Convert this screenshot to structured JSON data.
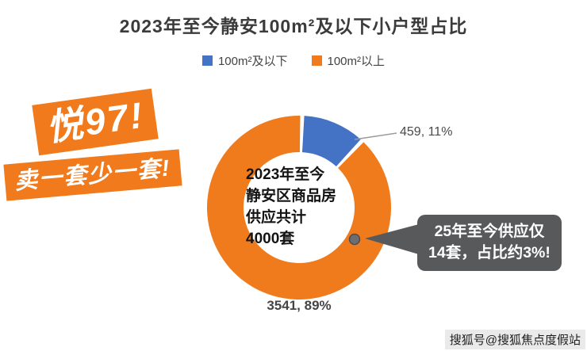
{
  "title": "2023年至今静安100m²及以下小户型占比",
  "legend": [
    {
      "label": "100m²及以下",
      "color": "#4472c4"
    },
    {
      "label": "100m²以上",
      "color": "#f07b1d"
    }
  ],
  "promo": {
    "line1": "悦97!",
    "line2": "卖一套少一套!"
  },
  "donut_center": {
    "lines": [
      "2023年至今",
      "静安区商品房",
      "供应共计",
      "4000套"
    ]
  },
  "callout": {
    "lines": [
      "25年至今供应仅",
      "14套，占比约3%!"
    ]
  },
  "watermark": "搜狐号@搜狐焦点度假站",
  "chart_data": {
    "type": "pie",
    "donut": true,
    "title": "2023年至今静安100m²及以下小户型占比",
    "categories": [
      "100m²及以下",
      "100m²以上"
    ],
    "values": [
      459,
      3541
    ],
    "total": 4000,
    "percent_labels": [
      "459, 11%",
      "3541, 89%"
    ],
    "colors": [
      "#4472c4",
      "#f07b1d"
    ],
    "legend_position": "top",
    "center_label": "2023年至今静安区商品房供应共计4000套",
    "annotation": "25年至今供应仅14套，占比约3%!"
  }
}
